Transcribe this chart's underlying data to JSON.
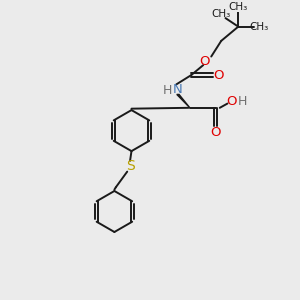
{
  "bg_color": "#ebebeb",
  "bond_color": "#1a1a1a",
  "o_color": "#e00000",
  "n_color": "#4a7ab5",
  "s_color": "#b8a000",
  "lw": 1.4,
  "figsize": [
    3.0,
    3.0
  ],
  "dpi": 100,
  "xlim": [
    0,
    10
  ],
  "ylim": [
    0,
    10
  ]
}
